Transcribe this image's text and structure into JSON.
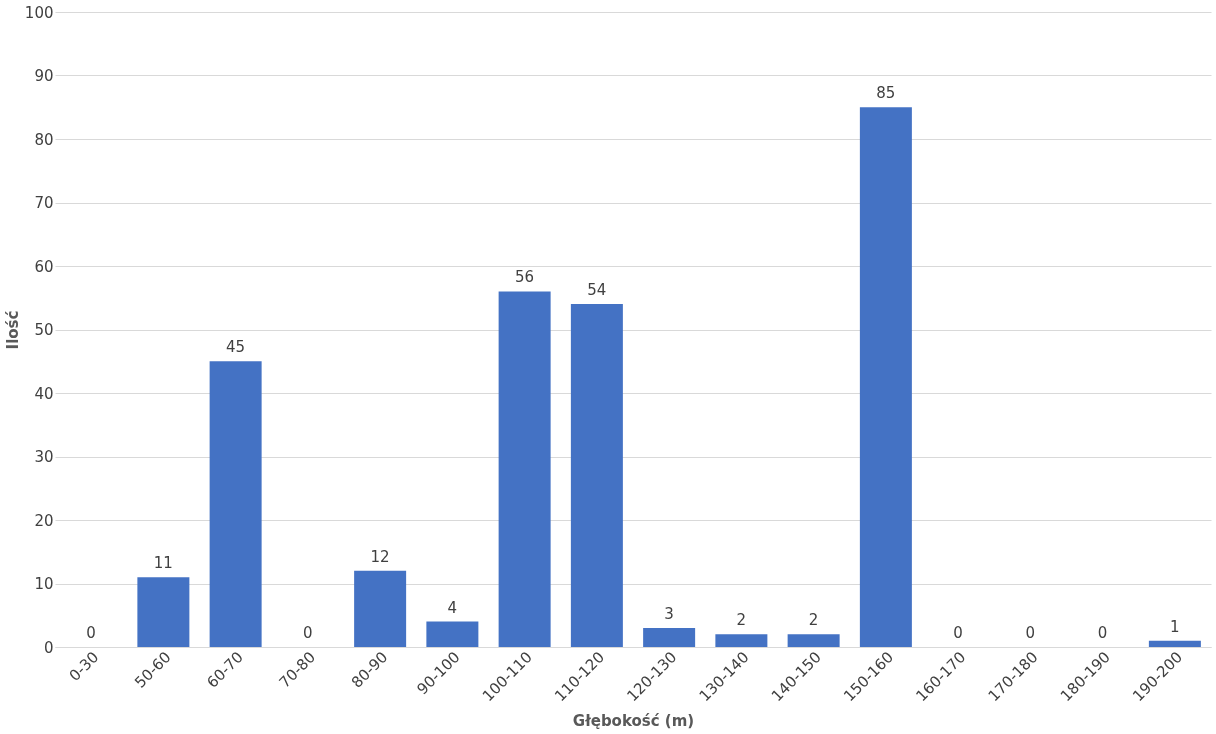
{
  "chart_data": {
    "type": "bar",
    "xlabel": "Głębokość (m)",
    "ylabel": "Ilość",
    "categories": [
      "0-30",
      "50-60",
      "60-70",
      "70-80",
      "80-90",
      "90-100",
      "100-110",
      "110-120",
      "120-130",
      "130-140",
      "140-150",
      "150-160",
      "160-170",
      "170-180",
      "180-190",
      "190-200"
    ],
    "values": [
      0,
      11,
      45,
      0,
      12,
      4,
      56,
      54,
      3,
      2,
      2,
      85,
      0,
      0,
      0,
      1
    ],
    "color": "#4472c4",
    "ylim": [
      0,
      100
    ],
    "yticks": [
      0,
      10,
      20,
      30,
      40,
      50,
      60,
      70,
      80,
      90,
      100
    ],
    "grid": "y",
    "data_labels": true
  }
}
